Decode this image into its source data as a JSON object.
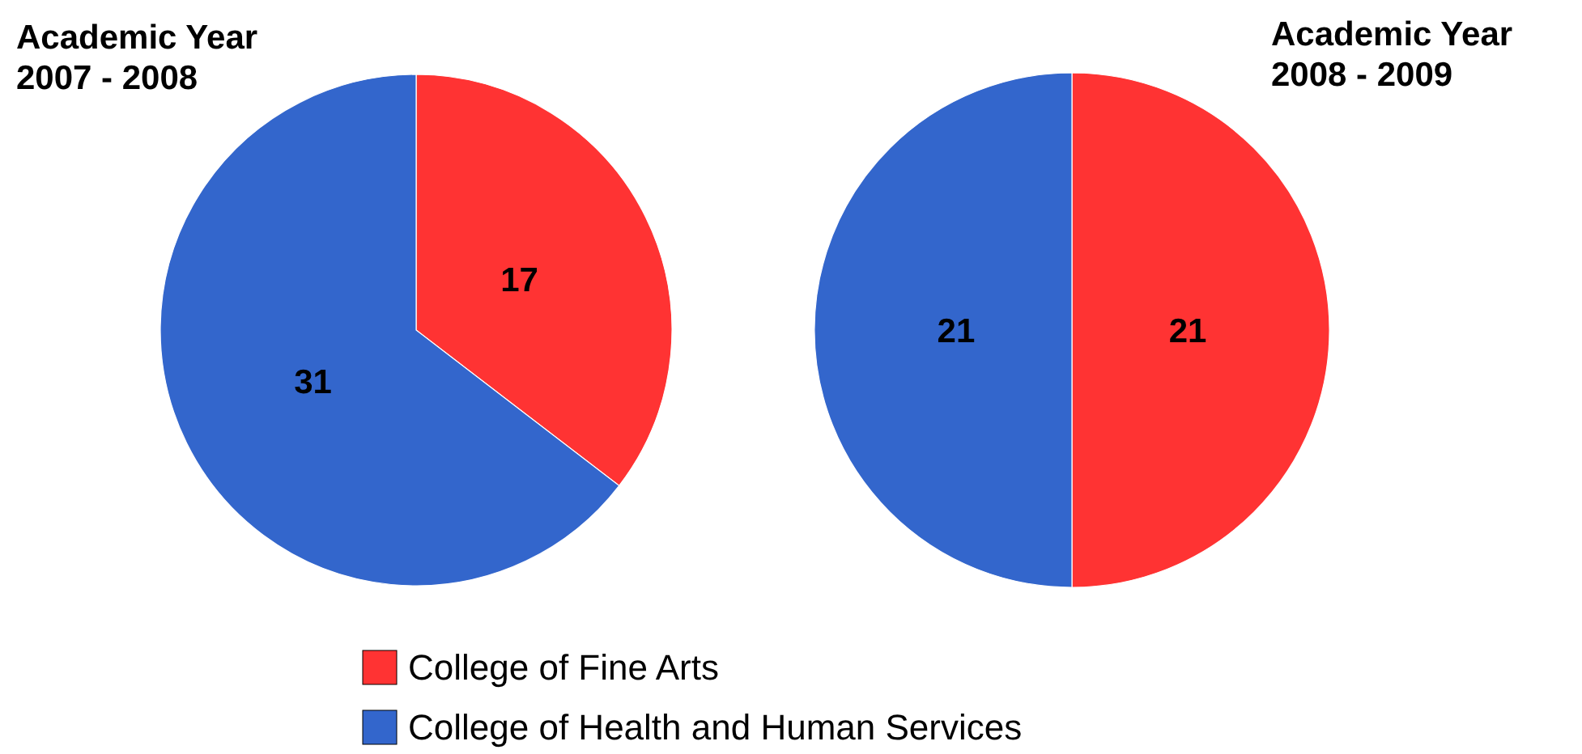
{
  "chart_data": [
    {
      "type": "pie",
      "title": "Academic Year 2007 - 2008",
      "categories": [
        "College of Fine Arts",
        "College of Health and Human Services"
      ],
      "values": [
        17,
        31
      ],
      "colors": [
        "#ff3333",
        "#3366cc"
      ],
      "data_labels": true,
      "legend": "bottom"
    },
    {
      "type": "pie",
      "title": "Academic Year 2008 - 2009",
      "categories": [
        null,
        null
      ],
      "values": [
        21,
        21
      ],
      "colors": [
        "#ff3333",
        "#3366cc"
      ],
      "data_labels": true
    }
  ]
}
